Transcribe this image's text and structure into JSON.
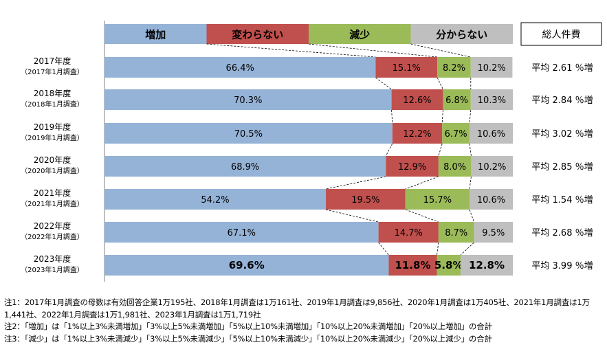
{
  "chart_data": {
    "type": "bar",
    "stacked": true,
    "horizontal": true,
    "percent": true,
    "legend": [
      {
        "name": "増加",
        "color": "#95b3d7"
      },
      {
        "name": "変わらない",
        "color": "#c0504d"
      },
      {
        "name": "減少",
        "color": "#9bbb59"
      },
      {
        "name": "分からない",
        "color": "#bfbfbf"
      }
    ],
    "right_header": "総人件費",
    "rows": [
      {
        "year": "2017年度",
        "survey": "（2017年1月調査）",
        "values": [
          66.4,
          15.1,
          8.2,
          10.2
        ],
        "labels": [
          "66.4%",
          "15.1%",
          "8.2%",
          "10.2%"
        ],
        "avg": "平均 2.61 ％増",
        "bold": false
      },
      {
        "year": "2018年度",
        "survey": "（2018年1月調査）",
        "values": [
          70.3,
          12.6,
          6.8,
          10.3
        ],
        "labels": [
          "70.3%",
          "12.6%",
          "6.8%",
          "10.3%"
        ],
        "avg": "平均 2.84 ％増",
        "bold": false
      },
      {
        "year": "2019年度",
        "survey": "（2019年1月調査）",
        "values": [
          70.5,
          12.2,
          6.7,
          10.6
        ],
        "labels": [
          "70.5%",
          "12.2%",
          "6.7%",
          "10.6%"
        ],
        "avg": "平均 3.02 ％増",
        "bold": false
      },
      {
        "year": "2020年度",
        "survey": "（2020年1月調査）",
        "values": [
          68.9,
          12.9,
          8.0,
          10.2
        ],
        "labels": [
          "68.9%",
          "12.9%",
          "8.0%",
          "10.2%"
        ],
        "avg": "平均 2.85 ％増",
        "bold": false
      },
      {
        "year": "2021年度",
        "survey": "（2021年1月調査）",
        "values": [
          54.2,
          19.5,
          15.7,
          10.6
        ],
        "labels": [
          "54.2%",
          "19.5%",
          "15.7%",
          "10.6%"
        ],
        "avg": "平均 1.54 ％増",
        "bold": false
      },
      {
        "year": "2022年度",
        "survey": "（2022年1月調査）",
        "values": [
          67.1,
          14.7,
          8.7,
          9.5
        ],
        "labels": [
          "67.1%",
          "14.7%",
          "8.7%",
          "9.5%"
        ],
        "avg": "平均 2.68 ％増",
        "bold": false
      },
      {
        "year": "2023年度",
        "survey": "（2023年1月調査）",
        "values": [
          69.6,
          11.8,
          5.8,
          12.8
        ],
        "labels": [
          "69.6%",
          "11.8%",
          "5.8%",
          "12.8%"
        ],
        "avg": "平均 3.99 ％増",
        "bold": true
      }
    ]
  },
  "notes": [
    "注1：2017年1月調査の母数は有効回答企業1万195社、2018年1月調査は1万161社、2019年1月調査は9,856社、2020年1月調査は1万405社、2021年1月調査は1万1,441社、2022年1月調査は1万1,981社、2023年1月調査は1万1,719社",
    "注2：「増加」は「1%以上3%未満増加」「3%以上5%未満増加」「5%以上10%未満増加」「10%以上20%未満増加」「20%以上増加」の合計",
    "注3：「減少」は「1%以上3%未満減少」「3%以上5%未満減少」「5%以上10%未満減少」「10%以上20%未満減少」「20%以上減少」の合計"
  ]
}
